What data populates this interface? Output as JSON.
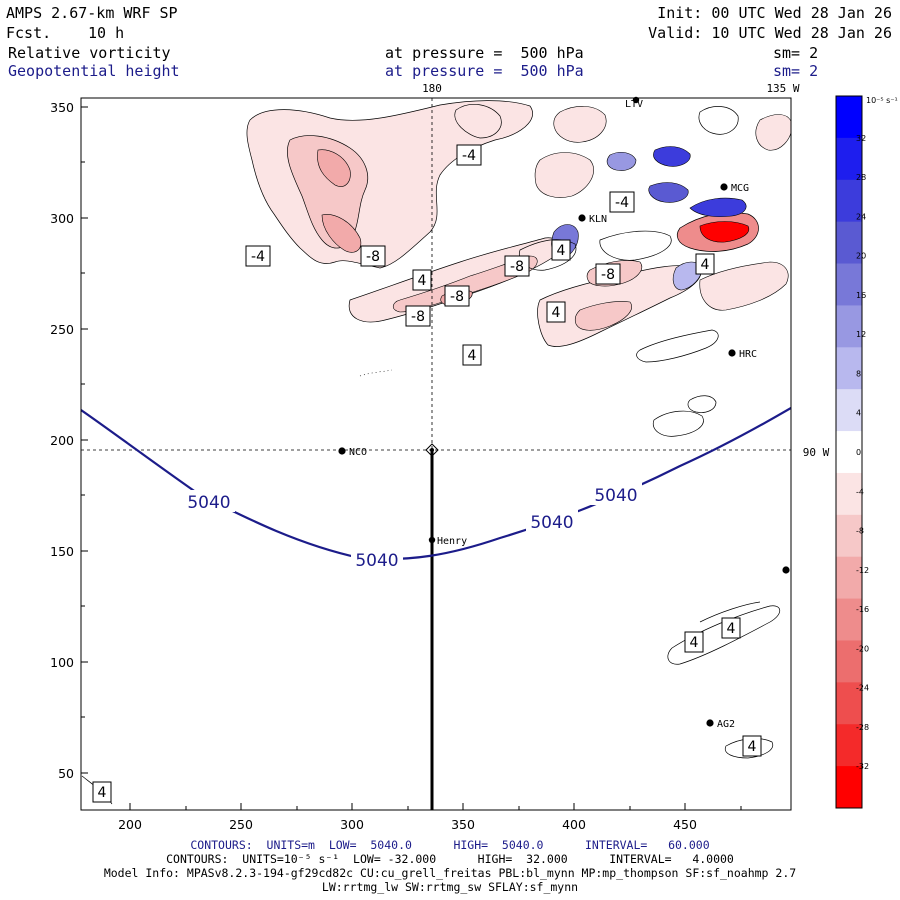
{
  "header": {
    "model": "AMPS 2.67-km WRF SP",
    "fcst_label": "Fcst.",
    "fcst_value": "10 h",
    "init": "Init: 00 UTC Wed 28 Jan 26",
    "valid": "Valid: 10 UTC Wed 28 Jan 26",
    "field1_name": "Relative vorticity",
    "field1_level": "at pressure =  500 hPa",
    "field1_sm": "sm= 2",
    "field2_name": "Geopotential height",
    "field2_level": "at pressure =  500 hPa",
    "field2_sm": "sm= 2"
  },
  "map": {
    "meridian_label_top": "180",
    "meridian_label_right_top": "135 W",
    "parallel_label_right": "90 W",
    "x_ticks": [
      "200",
      "250",
      "300",
      "350",
      "400",
      "450"
    ],
    "y_ticks": [
      "350",
      "300",
      "250",
      "200",
      "150",
      "100",
      "50"
    ],
    "stations": [
      {
        "id": "NCO",
        "label": "NCO"
      },
      {
        "id": "Henry",
        "label": "Henry"
      },
      {
        "id": "HRC",
        "label": "HRC"
      },
      {
        "id": "AG2",
        "label": "AG2"
      },
      {
        "id": "KLN",
        "label": "KLN"
      },
      {
        "id": "LTV",
        "label": "LTV"
      },
      {
        "id": "MCG",
        "label": "MCG"
      }
    ],
    "height_contour_labels": [
      "5040",
      "5040",
      "5040",
      "5040"
    ],
    "vorticity_labels": [
      "-4",
      "-4",
      "-4",
      "-8",
      "-8",
      "-8",
      "-8",
      "-8",
      "4",
      "4",
      "4",
      "4",
      "4",
      "4",
      "4",
      "4",
      "4"
    ]
  },
  "colorbar": {
    "units_label": "10⁻⁵ s⁻¹",
    "ticks": [
      "32",
      "28",
      "24",
      "20",
      "16",
      "12",
      "8",
      "4",
      "0",
      "-4",
      "-8",
      "-12",
      "-16",
      "-20",
      "-24",
      "-28",
      "-32"
    ],
    "colors": [
      "#0000ff",
      "#1e1eee",
      "#3c3cdc",
      "#5a5ad2",
      "#7878d8",
      "#9898e2",
      "#b8b8ee",
      "#dcdcf6",
      "#ffffff",
      "#fbe4e4",
      "#f6c8c8",
      "#f2aaaa",
      "#ee8c8c",
      "#ec6e6e",
      "#ee4e4e",
      "#f42a2a",
      "#ff0000"
    ]
  },
  "footer": {
    "line1": "CONTOURS:  UNITS=m  LOW=  5040.0      HIGH=  5040.0      INTERVAL=   60.000",
    "line2": "CONTOURS:  UNITS=10⁻⁵ s⁻¹  LOW= -32.000      HIGH=  32.000      INTERVAL=   4.0000",
    "line3": "Model Info: MPASv8.2.3-194-gf29cd82c CU:cu_grell_freitas PBL:bl_mynn MP:mp_thompson SF:sf_noahmp 2.7",
    "line4": "LW:rrtmg_lw SW:rrtmg_sw SFLAY:sf_mynn"
  }
}
